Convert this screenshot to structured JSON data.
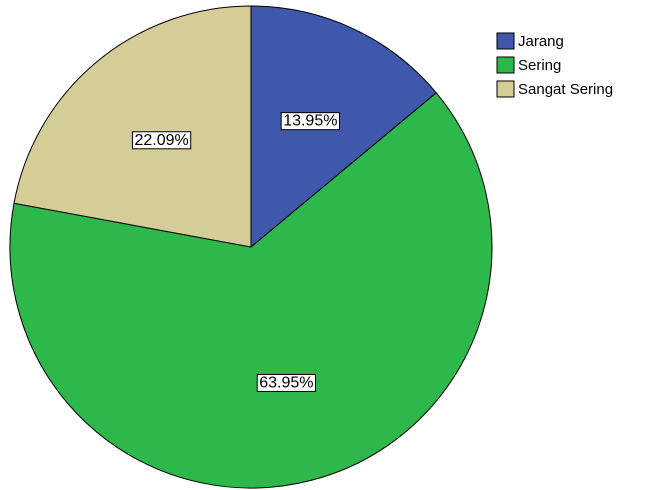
{
  "chart_data": {
    "type": "pie",
    "categories": [
      "Jarang",
      "Sering",
      "Sangat Sering"
    ],
    "values": [
      13.95,
      63.95,
      22.09
    ],
    "value_labels": [
      "13.95%",
      "63.95%",
      "22.09%"
    ],
    "colors": [
      "#3e58ac",
      "#2eb84b",
      "#d5cd98"
    ],
    "legend": "top-right"
  }
}
